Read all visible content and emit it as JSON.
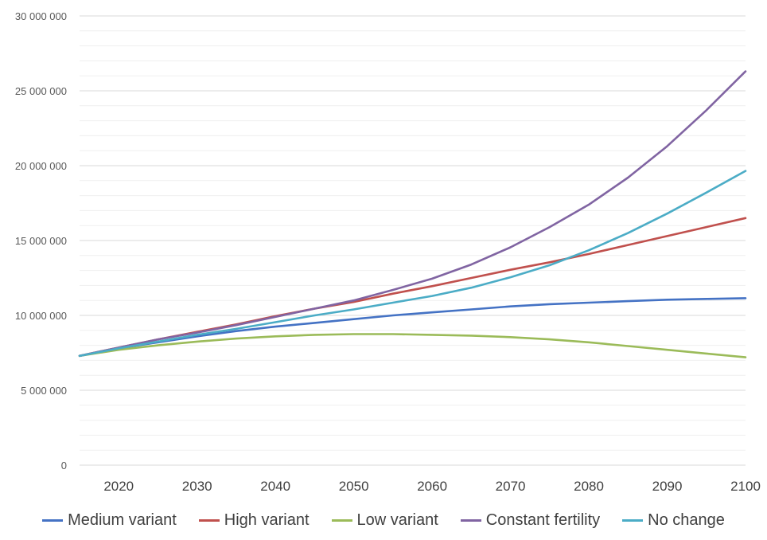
{
  "chart_data": {
    "type": "line",
    "title": "",
    "xlabel": "",
    "ylabel": "",
    "xlim": [
      2015,
      2100
    ],
    "ylim": [
      0,
      30000000
    ],
    "grid": true,
    "legend_position": "bottom",
    "x_ticks": [
      2020,
      2030,
      2040,
      2050,
      2060,
      2070,
      2080,
      2090,
      2100
    ],
    "x_tick_labels": [
      "2020",
      "2030",
      "2040",
      "2050",
      "2060",
      "2070",
      "2080",
      "2090",
      "2100"
    ],
    "y_ticks": [
      0,
      5000000,
      10000000,
      15000000,
      20000000,
      25000000,
      30000000
    ],
    "y_tick_labels": [
      "0",
      "5 000 000",
      "10 000 000",
      "15 000 000",
      "20 000 000",
      "25 000 000",
      "30 000 000"
    ],
    "x": [
      2015,
      2020,
      2025,
      2030,
      2035,
      2040,
      2045,
      2050,
      2055,
      2060,
      2065,
      2070,
      2075,
      2080,
      2085,
      2090,
      2095,
      2100
    ],
    "series": [
      {
        "name": "Medium variant",
        "color": "#4472C4",
        "values": [
          7300000,
          7800000,
          8200000,
          8600000,
          8950000,
          9250000,
          9500000,
          9750000,
          10000000,
          10200000,
          10400000,
          10600000,
          10750000,
          10850000,
          10950000,
          11050000,
          11100000,
          11150000
        ]
      },
      {
        "name": "High variant",
        "color": "#C0504D",
        "values": [
          7300000,
          7850000,
          8400000,
          8900000,
          9400000,
          9950000,
          10450000,
          10900000,
          11450000,
          11950000,
          12500000,
          13050000,
          13550000,
          14100000,
          14700000,
          15300000,
          15900000,
          16500000
        ]
      },
      {
        "name": "Low variant",
        "color": "#9BBB59",
        "values": [
          7300000,
          7700000,
          8000000,
          8250000,
          8450000,
          8600000,
          8700000,
          8750000,
          8750000,
          8700000,
          8650000,
          8550000,
          8400000,
          8200000,
          7950000,
          7700000,
          7450000,
          7200000
        ]
      },
      {
        "name": "Constant fertility",
        "color": "#8064A2",
        "values": [
          7300000,
          7850000,
          8400000,
          8850000,
          9350000,
          9900000,
          10450000,
          11000000,
          11700000,
          12450000,
          13400000,
          14550000,
          15900000,
          17400000,
          19200000,
          21300000,
          23700000,
          26300000
        ]
      },
      {
        "name": "No change",
        "color": "#4BACC6",
        "values": [
          7300000,
          7800000,
          8250000,
          8700000,
          9100000,
          9550000,
          10000000,
          10400000,
          10850000,
          11300000,
          11850000,
          12550000,
          13350000,
          14350000,
          15500000,
          16800000,
          18200000,
          19650000
        ]
      }
    ]
  }
}
